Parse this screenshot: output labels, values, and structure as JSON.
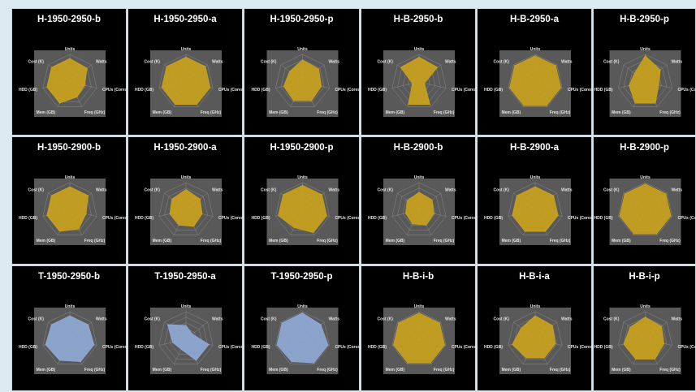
{
  "chart_data": {
    "type": "radar",
    "axes": [
      "Units",
      "Watts",
      "CPUs (Cores)",
      "Freq (GHz)",
      "Mem (GB)",
      "HDD (GB)",
      "Cost (K)"
    ],
    "rmax": 1.0,
    "grid_rings": 5,
    "charts": [
      {
        "title": "H-1950-2950-b",
        "color": "#c8a21c",
        "values": [
          0.85,
          0.8,
          0.55,
          0.6,
          0.85,
          0.85,
          0.85
        ]
      },
      {
        "title": "H-1950-2950-a",
        "color": "#c8a21c",
        "values": [
          0.9,
          0.9,
          0.9,
          0.9,
          0.9,
          0.9,
          0.9
        ]
      },
      {
        "title": "H-1950-2950-p",
        "color": "#c8a21c",
        "values": [
          0.8,
          0.75,
          0.7,
          0.75,
          0.75,
          0.7,
          0.6
        ]
      },
      {
        "title": "H-B-2950-b",
        "color": "#c8a21c",
        "values": [
          0.9,
          0.85,
          0.2,
          0.9,
          0.9,
          0.25,
          0.85
        ]
      },
      {
        "title": "H-B-2950-a",
        "color": "#c8a21c",
        "values": [
          0.95,
          0.95,
          0.95,
          0.95,
          0.95,
          0.95,
          0.95
        ]
      },
      {
        "title": "H-B-2950-p",
        "color": "#c8a21c",
        "values": [
          0.95,
          0.7,
          0.5,
          0.85,
          0.85,
          0.6,
          0.5
        ]
      },
      {
        "title": "H-1950-2900-b",
        "color": "#c8a21c",
        "values": [
          0.85,
          0.85,
          0.6,
          0.75,
          0.85,
          0.85,
          0.85
        ]
      },
      {
        "title": "H-1950-2900-a",
        "color": "#c8a21c",
        "values": [
          0.75,
          0.65,
          0.6,
          0.65,
          0.6,
          0.6,
          0.65
        ]
      },
      {
        "title": "H-1950-2900-p",
        "color": "#c8a21c",
        "values": [
          0.9,
          0.9,
          0.9,
          0.9,
          0.7,
          0.9,
          0.9
        ]
      },
      {
        "title": "H-B-2900-b",
        "color": "#c8a21c",
        "values": [
          0.65,
          0.6,
          0.55,
          0.6,
          0.55,
          0.5,
          0.55
        ]
      },
      {
        "title": "H-B-2900-a",
        "color": "#c8a21c",
        "values": [
          0.85,
          0.85,
          0.85,
          0.85,
          0.85,
          0.85,
          0.85
        ]
      },
      {
        "title": "H-B-2900-p",
        "color": "#c8a21c",
        "values": [
          0.95,
          0.95,
          0.95,
          0.95,
          0.95,
          0.95,
          0.95
        ]
      },
      {
        "title": "T-1950-2950-b",
        "color": "#8fa8d4",
        "values": [
          0.85,
          0.85,
          0.9,
          0.9,
          0.85,
          0.9,
          0.85
        ]
      },
      {
        "title": "T-1950-2950-a",
        "color": "#8fa8d4",
        "values": [
          0.5,
          0.3,
          0.85,
          0.85,
          0.4,
          0.5,
          0.85
        ]
      },
      {
        "title": "T-1950-2950-p",
        "color": "#8fa8d4",
        "values": [
          0.95,
          0.85,
          0.95,
          0.95,
          0.9,
          0.95,
          0.95
        ]
      },
      {
        "title": "H-B-i-b",
        "color": "#c8a21c",
        "values": [
          0.95,
          0.95,
          0.95,
          0.95,
          0.95,
          0.95,
          0.95
        ]
      },
      {
        "title": "H-B-i-a",
        "color": "#c8a21c",
        "values": [
          0.85,
          0.8,
          0.75,
          0.75,
          0.75,
          0.85,
          0.65
        ]
      },
      {
        "title": "H-B-i-p",
        "color": "#c8a21c",
        "values": [
          0.8,
          0.75,
          0.7,
          0.8,
          0.8,
          0.8,
          0.7
        ]
      }
    ]
  }
}
